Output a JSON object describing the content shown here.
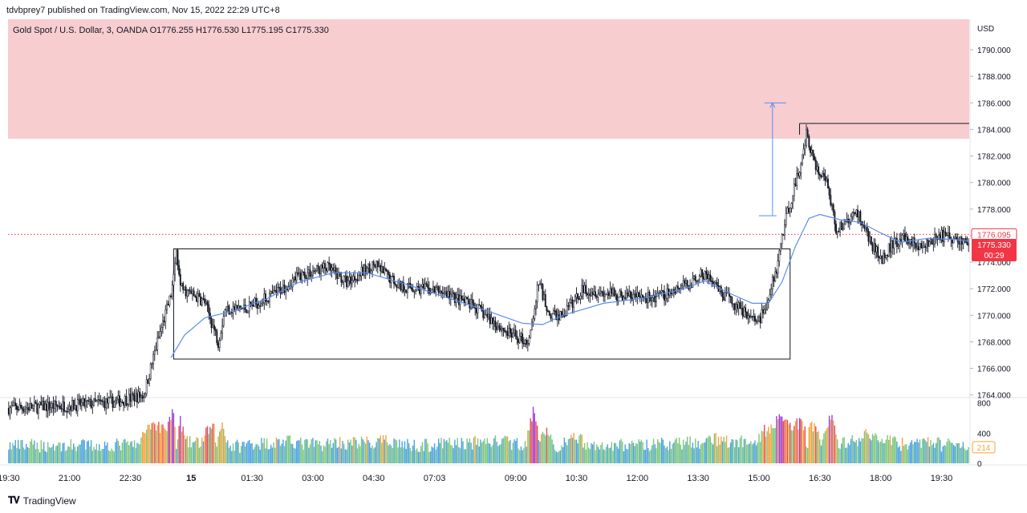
{
  "caption": "tdvbprey7 published on TradingView.com, Nov 15, 2022 22:29 UTC+8",
  "footer": {
    "brand": "TradingView",
    "logo_icon": "tradingview-logo-icon"
  },
  "legend": "Gold Spot / U.S. Dollar, 3, OANDA  O1776.255  H1776.530  L1775.195  C1775.330",
  "colors": {
    "zone_fill": "#f7cdd0",
    "up": "#131722",
    "down": "#131722",
    "ma": "#5b8def",
    "price_tag": "#f23645",
    "volume_blue": "#4aa3df",
    "volume_green": "#7cc77e",
    "volume_orange": "#f5a33b",
    "volume_purple": "#9c3fd6",
    "volume_red": "#e54b5b"
  },
  "chart_data": {
    "type": "candlestick",
    "instrument": "Gold Spot / U.S. Dollar",
    "timeframe": "3",
    "source": "OANDA",
    "ohlc": {
      "open": 1776.255,
      "high": 1776.53,
      "low": 1775.195,
      "close": 1775.33
    },
    "currency_label": "USD",
    "ylim": [
      1763.8,
      1792.3
    ],
    "y_ticks": [
      1764,
      1766,
      1768,
      1770,
      1772,
      1774,
      1776,
      1778,
      1780,
      1782,
      1784,
      1786,
      1788,
      1790
    ],
    "y_tick_labels": [
      "1764.000",
      "1766.000",
      "1768.000",
      "1770.000",
      "1772.000",
      "1774.000",
      "1776.000",
      "1778.000",
      "1780.000",
      "1782.000",
      "1784.000",
      "1786.000",
      "1788.000",
      "1790.000"
    ],
    "x_tick_labels": [
      "19:30",
      "21:00",
      "22:30",
      "15",
      "01:30",
      "03:00",
      "04:30",
      "07:03",
      "09:00",
      "10:30",
      "12:00",
      "13:30",
      "15:00",
      "16:30",
      "18:00",
      "19:30"
    ],
    "x_tick_index": [
      0,
      45,
      90,
      135,
      180,
      225,
      270,
      315,
      375,
      420,
      465,
      510,
      555,
      600,
      645,
      690
    ],
    "last_price": "1775.330",
    "last_price_value": 1775.33,
    "countdown": "00:29",
    "prev_price": "1776.095",
    "prev_price_value": 1776.095,
    "supply_zone": [
      1783.3,
      1792.3
    ],
    "range_box": {
      "start": 122,
      "end": 578,
      "top": 1775.0,
      "bottom": 1766.7
    },
    "arrow": {
      "index": 565,
      "from": 1777.5,
      "to": 1786.0
    },
    "high_line": {
      "start": 585,
      "value": 1784.45
    },
    "volume": {
      "ticks": [
        "800",
        "400",
        "0"
      ],
      "tick_values": [
        800,
        400,
        0
      ],
      "ylim": [
        0,
        850
      ],
      "last_label": "214",
      "last_value": 214
    },
    "path_anchors": [
      [
        0,
        1763.0
      ],
      [
        45,
        1763.2
      ],
      [
        80,
        1763.5
      ],
      [
        100,
        1764.0
      ],
      [
        110,
        1768.0
      ],
      [
        120,
        1771.5
      ],
      [
        124,
        1774.8
      ],
      [
        128,
        1772.0
      ],
      [
        145,
        1771.0
      ],
      [
        155,
        1768.0
      ],
      [
        160,
        1770.5
      ],
      [
        175,
        1770.5
      ],
      [
        195,
        1771.5
      ],
      [
        215,
        1773.0
      ],
      [
        235,
        1773.6
      ],
      [
        250,
        1772.5
      ],
      [
        270,
        1773.8
      ],
      [
        290,
        1772.2
      ],
      [
        320,
        1771.8
      ],
      [
        345,
        1770.6
      ],
      [
        370,
        1768.6
      ],
      [
        385,
        1768.0
      ],
      [
        392,
        1772.5
      ],
      [
        400,
        1770.0
      ],
      [
        410,
        1770.0
      ],
      [
        425,
        1772.0
      ],
      [
        450,
        1771.5
      ],
      [
        480,
        1771.3
      ],
      [
        505,
        1772.5
      ],
      [
        515,
        1773.2
      ],
      [
        525,
        1771.8
      ],
      [
        545,
        1770.2
      ],
      [
        555,
        1769.5
      ],
      [
        562,
        1771.5
      ],
      [
        568,
        1773.5
      ],
      [
        572,
        1776.0
      ],
      [
        578,
        1778.5
      ],
      [
        585,
        1781.0
      ],
      [
        590,
        1783.8
      ],
      [
        597,
        1781.0
      ],
      [
        605,
        1780.0
      ],
      [
        612,
        1776.5
      ],
      [
        620,
        1777.0
      ],
      [
        628,
        1777.8
      ],
      [
        635,
        1776.0
      ],
      [
        645,
        1774.2
      ],
      [
        655,
        1775.5
      ],
      [
        665,
        1775.8
      ],
      [
        675,
        1775.0
      ],
      [
        690,
        1776.0
      ],
      [
        704,
        1775.6
      ],
      [
        710,
        1775.4
      ]
    ],
    "ma_anchors": [
      [
        120,
        1766.8
      ],
      [
        130,
        1768.5
      ],
      [
        145,
        1769.8
      ],
      [
        165,
        1770.3
      ],
      [
        190,
        1771.2
      ],
      [
        215,
        1772.5
      ],
      [
        240,
        1773.2
      ],
      [
        265,
        1773.2
      ],
      [
        295,
        1772.3
      ],
      [
        325,
        1771.3
      ],
      [
        355,
        1770.3
      ],
      [
        380,
        1769.4
      ],
      [
        395,
        1769.3
      ],
      [
        410,
        1770.0
      ],
      [
        440,
        1770.9
      ],
      [
        470,
        1771.3
      ],
      [
        500,
        1772.0
      ],
      [
        515,
        1772.6
      ],
      [
        530,
        1771.8
      ],
      [
        550,
        1770.9
      ],
      [
        562,
        1770.9
      ],
      [
        572,
        1772.5
      ],
      [
        582,
        1775.2
      ],
      [
        592,
        1777.3
      ],
      [
        600,
        1777.6
      ],
      [
        615,
        1777.2
      ],
      [
        630,
        1777.0
      ],
      [
        645,
        1776.2
      ],
      [
        660,
        1775.5
      ],
      [
        680,
        1775.8
      ],
      [
        700,
        1775.7
      ],
      [
        710,
        1775.6
      ]
    ]
  }
}
